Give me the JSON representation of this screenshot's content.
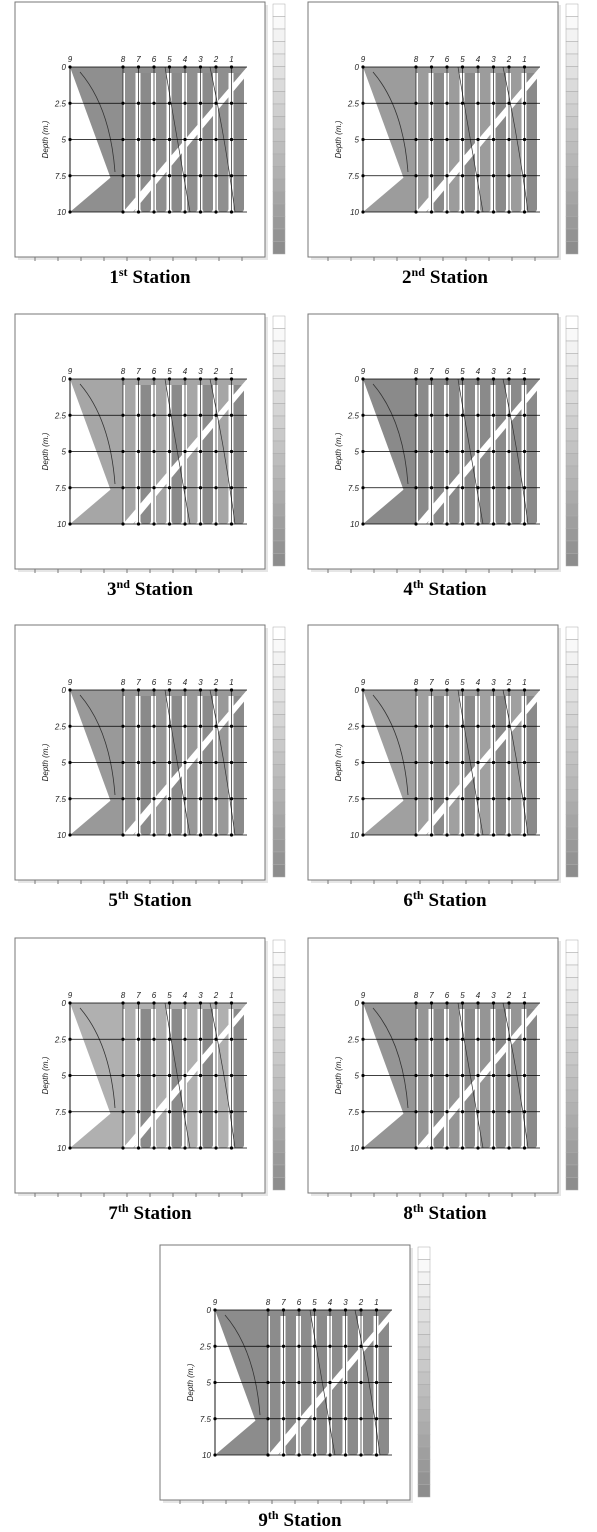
{
  "panels": [
    {
      "number": "1",
      "suffix": "st",
      "word": "Station"
    },
    {
      "number": "2",
      "suffix": "nd",
      "word": "Station"
    },
    {
      "number": "3",
      "suffix": "nd",
      "word": "Station"
    },
    {
      "number": "4",
      "suffix": "th",
      "word": "Station"
    },
    {
      "number": "5",
      "suffix": "th",
      "word": "Station"
    },
    {
      "number": "6",
      "suffix": "th",
      "word": "Station"
    },
    {
      "number": "7",
      "suffix": "th",
      "word": "Station"
    },
    {
      "number": "8",
      "suffix": "th",
      "word": "Station"
    },
    {
      "number": "9",
      "suffix": "th",
      "word": "Station"
    }
  ],
  "depth_axis": {
    "title": "Depth (m.)",
    "ticks": [
      "0",
      "2.5",
      "5",
      "7.5",
      "10"
    ]
  },
  "columns": [
    "9",
    "8",
    "7",
    "6",
    "5",
    "4",
    "3",
    "2",
    "1"
  ]
}
